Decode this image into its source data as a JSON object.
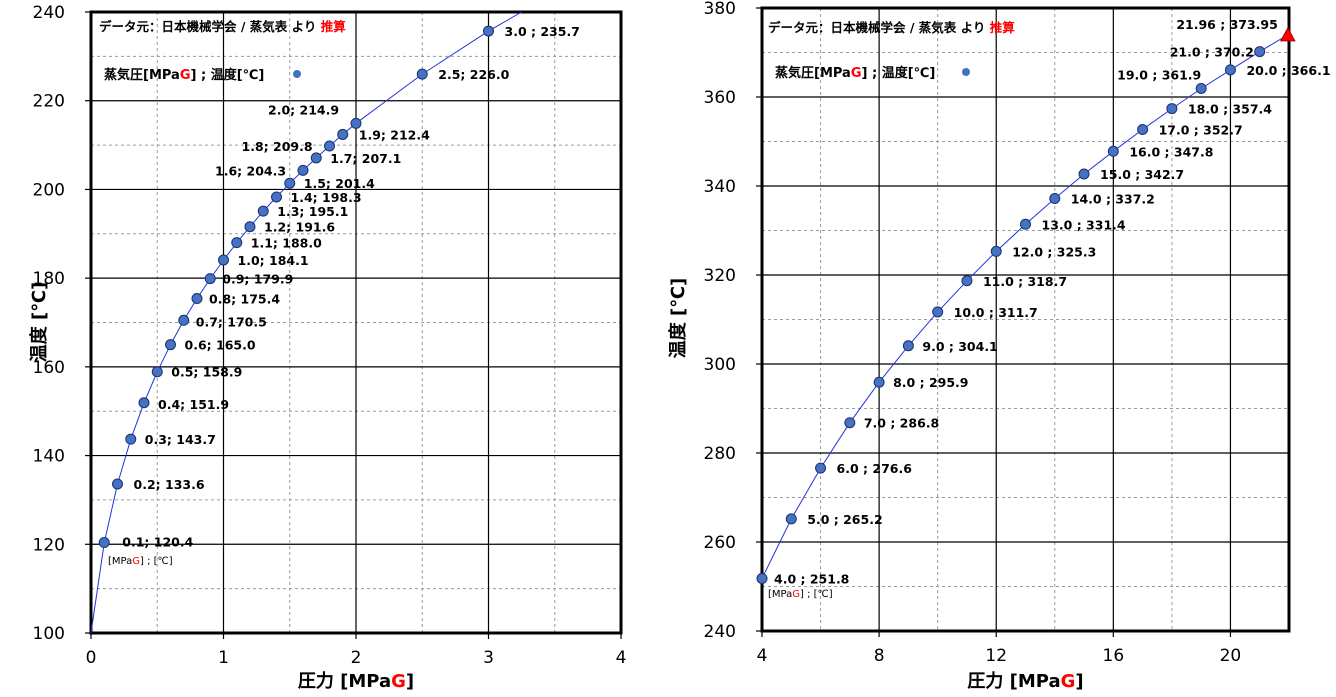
{
  "chart_data": [
    {
      "type": "scatter",
      "title": "",
      "source_note": "データ元：日本機械学会 / 蒸気表 より",
      "source_note_emph": "推算",
      "legend_label_pre": "蒸気圧[MPa",
      "legend_label_g": "G",
      "legend_label_post": "] ; 温度[℃]",
      "unit_label_pre": "[MPa",
      "unit_label_g": "G",
      "unit_label_post": "] ; [℃]",
      "xlabel_pre": "圧力 [MPa",
      "xlabel_g": "G",
      "xlabel_post": "]",
      "ylabel": "温度 [℃]",
      "xlim": [
        0,
        4
      ],
      "ylim": [
        100,
        240
      ],
      "xticks": [
        0,
        1,
        2,
        3,
        4
      ],
      "yticks": [
        100,
        120,
        140,
        160,
        180,
        200,
        220,
        240
      ],
      "grid": true,
      "series": [
        {
          "x": [
            0,
            0.1,
            0.2,
            0.3,
            0.4,
            0.5,
            0.6,
            0.7,
            0.8,
            0.9,
            1.0,
            1.1,
            1.2,
            1.3,
            1.4,
            1.5,
            1.6,
            1.7,
            1.8,
            1.9,
            2.0,
            2.5,
            3.0,
            3.25
          ],
          "y": [
            100,
            120.4,
            133.6,
            143.7,
            151.9,
            158.9,
            165.0,
            170.5,
            175.4,
            179.9,
            184.1,
            188.0,
            191.6,
            195.1,
            198.3,
            201.4,
            204.3,
            207.1,
            209.8,
            212.4,
            214.9,
            226.0,
            235.7,
            240
          ]
        }
      ],
      "points": [
        {
          "x": 0.1,
          "y": 120.4,
          "label": "0.1; 120.4"
        },
        {
          "x": 0.2,
          "y": 133.6,
          "label": "0.2; 133.6"
        },
        {
          "x": 0.3,
          "y": 143.7,
          "label": "0.3; 143.7"
        },
        {
          "x": 0.4,
          "y": 151.9,
          "label": "0.4; 151.9"
        },
        {
          "x": 0.5,
          "y": 158.9,
          "label": "0.5; 158.9"
        },
        {
          "x": 0.6,
          "y": 165.0,
          "label": "0.6; 165.0"
        },
        {
          "x": 0.7,
          "y": 170.5,
          "label": "0.7; 170.5"
        },
        {
          "x": 0.8,
          "y": 175.4,
          "label": "0.8; 175.4"
        },
        {
          "x": 0.9,
          "y": 179.9,
          "label": "0.9; 179.9"
        },
        {
          "x": 1.0,
          "y": 184.1,
          "label": "1.0; 184.1"
        },
        {
          "x": 1.1,
          "y": 188.0,
          "label": "1.1; 188.0"
        },
        {
          "x": 1.2,
          "y": 191.6,
          "label": "1.2; 191.6"
        },
        {
          "x": 1.3,
          "y": 195.1,
          "label": "1.3; 195.1"
        },
        {
          "x": 1.4,
          "y": 198.3,
          "label": "1.4; 198.3"
        },
        {
          "x": 1.5,
          "y": 201.4,
          "label": "1.5; 201.4"
        },
        {
          "x": 1.6,
          "y": 204.3,
          "label": "1.6; 204.3"
        },
        {
          "x": 1.7,
          "y": 207.1,
          "label": "1.7; 207.1"
        },
        {
          "x": 1.8,
          "y": 209.8,
          "label": "1.8; 209.8"
        },
        {
          "x": 1.9,
          "y": 212.4,
          "label": "1.9; 212.4"
        },
        {
          "x": 2.0,
          "y": 214.9,
          "label": "2.0; 214.9"
        },
        {
          "x": 2.5,
          "y": 226.0,
          "label": "2.5; 226.0"
        },
        {
          "x": 3.0,
          "y": 235.7,
          "label": "3.0 ; 235.7"
        }
      ],
      "colors": {
        "marker": "#4472C4",
        "marker_edge": "#1F2F6B",
        "line": "#2233DD",
        "accent": "#FF0000"
      }
    },
    {
      "type": "scatter",
      "title": "",
      "source_note": "データ元：日本機械学会 / 蒸気表 より",
      "source_note_emph": "推算",
      "legend_label_pre": "蒸気圧[MPa",
      "legend_label_g": "G",
      "legend_label_post": "] ; 温度[℃]",
      "unit_label_pre": "[MPa",
      "unit_label_g": "G",
      "unit_label_post": "] ; [℃]",
      "xlabel_pre": "圧力 [MPa",
      "xlabel_g": "G",
      "xlabel_post": "]",
      "ylabel": "温度 [℃]",
      "xlim": [
        4,
        22
      ],
      "ylim": [
        240,
        380
      ],
      "xticks": [
        4,
        8,
        12,
        16,
        20
      ],
      "yticks": [
        240,
        260,
        280,
        300,
        320,
        340,
        360,
        380
      ],
      "grid": true,
      "series": [
        {
          "x": [
            4,
            5,
            6,
            7,
            8,
            9,
            10,
            11,
            12,
            13,
            14,
            15,
            16,
            17,
            18,
            19,
            20,
            21,
            21.96
          ],
          "y": [
            251.8,
            265.2,
            276.6,
            286.8,
            295.9,
            304.1,
            311.7,
            318.7,
            325.3,
            331.4,
            337.2,
            342.7,
            347.8,
            352.7,
            357.4,
            361.9,
            366.1,
            370.2,
            373.95
          ]
        }
      ],
      "points": [
        {
          "x": 4,
          "y": 251.8,
          "label": "4.0 ; 251.8"
        },
        {
          "x": 5,
          "y": 265.2,
          "label": "5.0 ; 265.2"
        },
        {
          "x": 6,
          "y": 276.6,
          "label": "6.0 ; 276.6"
        },
        {
          "x": 7,
          "y": 286.8,
          "label": "7.0 ; 286.8"
        },
        {
          "x": 8,
          "y": 295.9,
          "label": "8.0 ; 295.9"
        },
        {
          "x": 9,
          "y": 304.1,
          "label": "9.0 ; 304.1"
        },
        {
          "x": 10,
          "y": 311.7,
          "label": "10.0 ; 311.7"
        },
        {
          "x": 11,
          "y": 318.7,
          "label": "11.0 ; 318.7"
        },
        {
          "x": 12,
          "y": 325.3,
          "label": "12.0 ; 325.3"
        },
        {
          "x": 13,
          "y": 331.4,
          "label": "13.0 ; 331.4"
        },
        {
          "x": 14,
          "y": 337.2,
          "label": "14.0 ; 337.2"
        },
        {
          "x": 15,
          "y": 342.7,
          "label": "15.0 ; 342.7"
        },
        {
          "x": 16,
          "y": 347.8,
          "label": "16.0 ; 347.8"
        },
        {
          "x": 17,
          "y": 352.7,
          "label": "17.0 ; 352.7"
        },
        {
          "x": 18,
          "y": 357.4,
          "label": "18.0 ; 357.4"
        },
        {
          "x": 19,
          "y": 361.9,
          "label": "19.0 ; 361.9"
        },
        {
          "x": 20,
          "y": 366.1,
          "label": "20.0 ; 366.1"
        },
        {
          "x": 21,
          "y": 370.2,
          "label": "21.0 ; 370.2"
        }
      ],
      "critical_point": {
        "x": 21.96,
        "y": 373.95,
        "label": "21.96 ; 373.95"
      },
      "colors": {
        "marker": "#4472C4",
        "marker_edge": "#1F2F6B",
        "line": "#2233DD",
        "accent": "#FF0000"
      }
    }
  ]
}
